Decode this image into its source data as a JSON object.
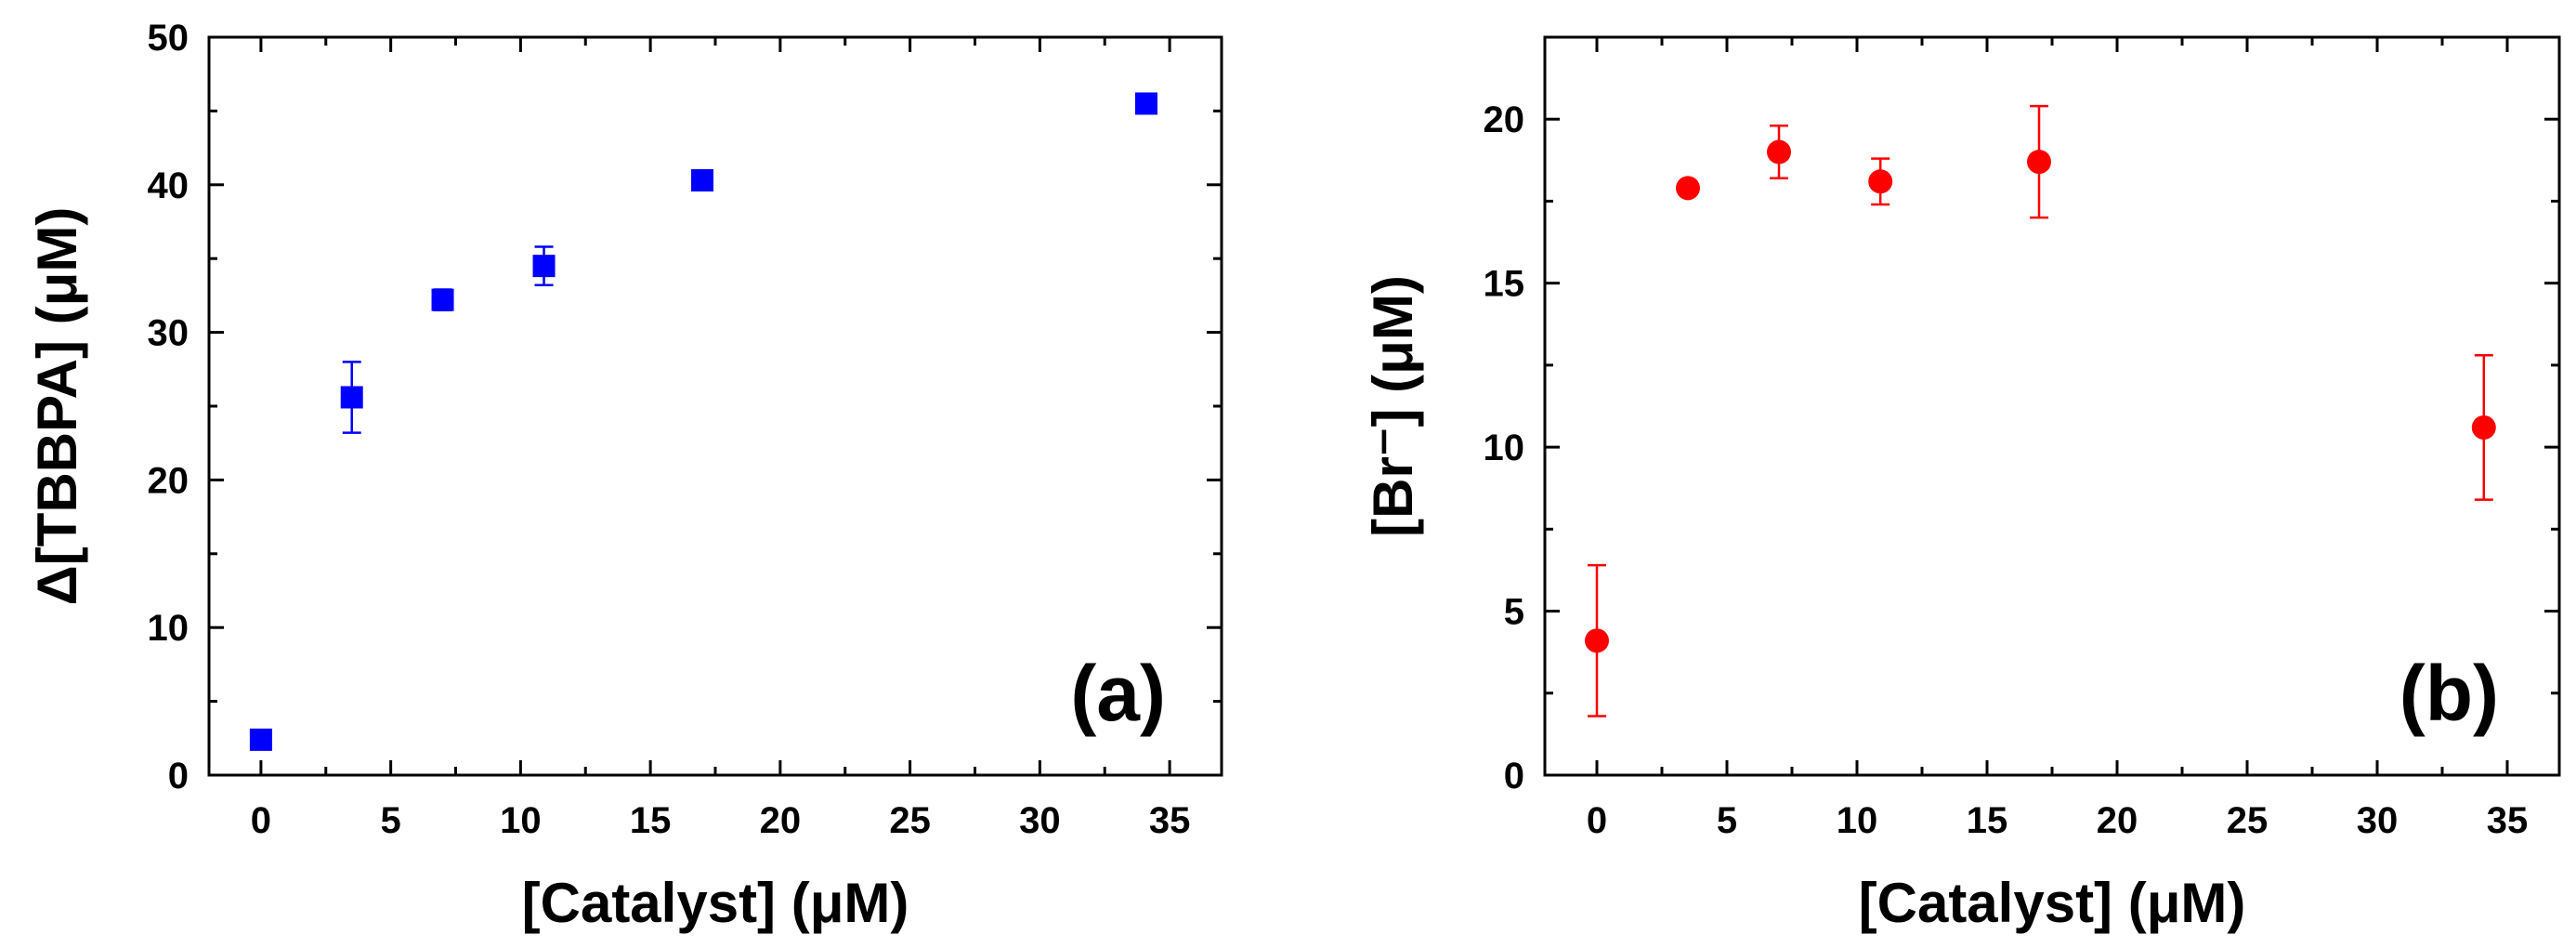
{
  "chart_data": [
    {
      "type": "scatter",
      "panel_label": "(a)",
      "xlabel": "[Catalyst] (μM)",
      "ylabel": "Δ[TBBPA] (μM)",
      "xlim": [
        -2,
        37
      ],
      "ylim": [
        0,
        50
      ],
      "xticks": [
        0,
        5,
        10,
        15,
        20,
        25,
        30,
        35
      ],
      "yticks": [
        0,
        10,
        20,
        30,
        40,
        50
      ],
      "marker": "square",
      "color": "#0000ff",
      "series": [
        {
          "name": "ΔTBBPA",
          "x": [
            0,
            3.5,
            7,
            10.9,
            17,
            34.1
          ],
          "y": [
            2.4,
            25.6,
            32.2,
            34.5,
            40.3,
            45.5
          ],
          "err": [
            0,
            2.4,
            0.7,
            1.3,
            0.4,
            0.4
          ]
        }
      ]
    },
    {
      "type": "scatter",
      "panel_label": "(b)",
      "xlabel": "[Catalyst] (μM)",
      "ylabel": "[Br⁻] (μM)",
      "xlim": [
        -2,
        37
      ],
      "ylim": [
        0,
        22.5
      ],
      "xticks": [
        0,
        5,
        10,
        15,
        20,
        25,
        30,
        35
      ],
      "yticks": [
        0,
        5,
        10,
        15,
        20
      ],
      "marker": "circle",
      "color": "#ff0000",
      "series": [
        {
          "name": "Br-",
          "x": [
            0,
            3.5,
            7,
            10.9,
            17,
            34.1
          ],
          "y": [
            4.1,
            17.9,
            19.0,
            18.1,
            18.7,
            10.6
          ],
          "err": [
            2.3,
            0,
            0.8,
            0.7,
            1.7,
            2.2
          ]
        }
      ]
    }
  ]
}
